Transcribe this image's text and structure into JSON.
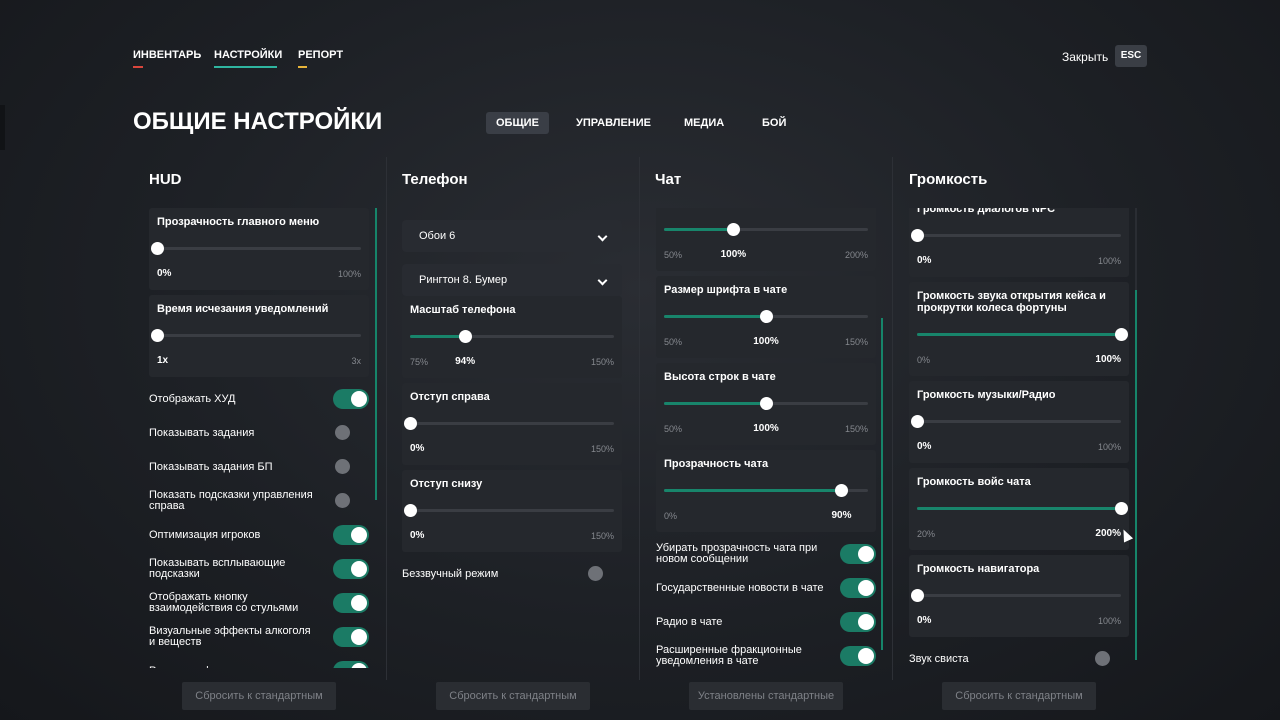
{
  "nav": {
    "tabs": [
      "ИНВЕНТАРЬ",
      "НАСТРОЙКИ",
      "РЕПОРТ"
    ],
    "close": "Закрыть",
    "esc": "ESC"
  },
  "header": {
    "title": "ОБЩИЕ НАСТРОЙКИ",
    "tabs": [
      "ОБЩИЕ",
      "УПРАВЛЕНИЕ",
      "МЕДИА",
      "БОЙ"
    ]
  },
  "columns": [
    {
      "title": "HUD",
      "button": "Сбросить к стандартным",
      "items": [
        {
          "title": "Прозрачность главного меню",
          "value": "0%",
          "max": "100%"
        },
        {
          "title": "Время исчезания уведомлений",
          "value": "1x",
          "max": "3x"
        },
        {
          "label": "Отображать ХУД",
          "on": true
        },
        {
          "label": "Показывать задания",
          "on": false
        },
        {
          "label": "Показывать задания БП",
          "on": false
        },
        {
          "label": "Показать подсказки управления справа",
          "on": false
        },
        {
          "label": "Оптимизация игроков",
          "on": true
        },
        {
          "label": "Показывать всплывающие подсказки",
          "on": true
        },
        {
          "label": "Отображать кнопку взаимодействия со стульями",
          "on": true
        },
        {
          "label": "Визуальные эффекты алкоголя и веществ",
          "on": true
        },
        {
          "label": "Размытие фона главного меню",
          "on": true
        }
      ]
    },
    {
      "title": "Телефон",
      "button": "Сбросить к стандартным",
      "items": [
        {
          "option": "Обои 6"
        },
        {
          "option": "Рингтон 8. Бумер"
        },
        {
          "title": "Масштаб телефона",
          "min": "75%",
          "value": "94%",
          "max": "150%"
        },
        {
          "title": "Отступ справа",
          "value": "0%",
          "max": "150%"
        },
        {
          "title": "Отступ снизу",
          "value": "0%",
          "max": "150%"
        },
        {
          "label": "Беззвучный режим",
          "on": false
        }
      ]
    },
    {
      "title": "Чат",
      "button": "Установлены стандартные",
      "items": [
        {
          "min": "50%",
          "value": "100%",
          "max": "200%"
        },
        {
          "title": "Размер шрифта в чате",
          "min": "50%",
          "value": "100%",
          "max": "150%"
        },
        {
          "title": "Высота строк в чате",
          "min": "50%",
          "value": "100%",
          "max": "150%"
        },
        {
          "title": "Прозрачность чата",
          "min": "0%",
          "value": "90%"
        },
        {
          "label": "Убирать прозрачность чата при новом сообщении",
          "on": true
        },
        {
          "label": "Государственные новости в чате",
          "on": true
        },
        {
          "label": "Радио в чате",
          "on": true
        },
        {
          "label": "Расширенные фракционные уведомления в чате",
          "on": true
        }
      ]
    },
    {
      "title": "Громкость",
      "button": "Сбросить к стандартным",
      "items": [
        {
          "title": "Громкость диалогов NPC",
          "value": "0%",
          "max": "100%"
        },
        {
          "title": "Громкость звука открытия кейса и прокрутки колеса фортуны",
          "min": "0%",
          "value": "100%"
        },
        {
          "title": "Громкость музыки/Радио",
          "value": "0%",
          "max": "100%"
        },
        {
          "title": "Громкость войс чата",
          "min": "20%",
          "value": "200%"
        },
        {
          "title": "Громкость навигатора",
          "value": "0%",
          "max": "100%"
        },
        {
          "label": "Звук свиста",
          "on": false
        }
      ]
    }
  ]
}
